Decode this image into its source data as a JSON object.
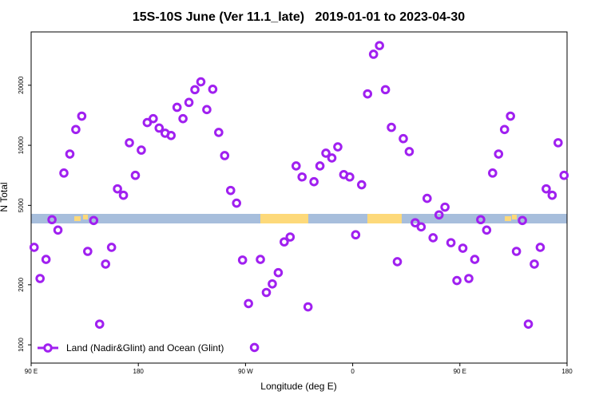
{
  "chart_data": {
    "type": "scatter",
    "title": "15S-10S June (Ver 11.1_late)   2019-01-01 to 2023-04-30",
    "x_label": "Longitude (deg E)",
    "y_label": "N Total",
    "log_y": true,
    "legend": "bottom-left",
    "xlim": [
      90,
      540
    ],
    "xticks": [
      {
        "value": 90,
        "label": "90 E"
      },
      180,
      {
        "value": 270,
        "label": "90 W"
      },
      {
        "value": 360,
        "label": "0"
      },
      {
        "value": 450,
        "label": "90 E"
      },
      {
        "value": 540,
        "label": "180"
      }
    ],
    "ylim": [
      810,
      37000
    ],
    "yticks": [
      1000,
      2000,
      5000,
      10000,
      20000
    ],
    "x": [
      92.5,
      97.5,
      102.5,
      107.5,
      112.5,
      117.5,
      122.5,
      127.5,
      132.5,
      137.5,
      142.5,
      147.5,
      152.5,
      157.5,
      162.5,
      167.5,
      172.5,
      177.5,
      182.5,
      187.5,
      192.5,
      197.5,
      202.5,
      207.5,
      212.5,
      217.5,
      222.5,
      227.5,
      232.5,
      237.5,
      242.5,
      247.5,
      252.5,
      257.5,
      262.5,
      267.5,
      272.5,
      277.5,
      282.5,
      287.5,
      292.5,
      297.5,
      302.5,
      307.5,
      312.5,
      317.5,
      322.5,
      327.5,
      332.5,
      337.5,
      342.5,
      347.5,
      352.5,
      357.5,
      362.5,
      367.5,
      372.5,
      377.5,
      382.5,
      387.5,
      392.5,
      397.5,
      402.5,
      407.5,
      412.5,
      417.5,
      422.5,
      427.5,
      432.5,
      437.5,
      442.5,
      447.5,
      452.5,
      457.5,
      462.5,
      467.5,
      472.5,
      477.5,
      482.5,
      487.5,
      492.5,
      497.5,
      502.5,
      507.5,
      512.5,
      517.5,
      522.5,
      527.5,
      532.5,
      537.5
    ],
    "series": [
      {
        "name": "Land (Nadir&Glint) and Ocean (Glint)",
        "color": "#a020f0",
        "values": [
          3080,
          2150,
          2680,
          4240,
          3760,
          7260,
          9040,
          12000,
          14000,
          2940,
          4200,
          1270,
          2540,
          3080,
          6050,
          5620,
          10300,
          7070,
          9460,
          13000,
          13600,
          12200,
          11500,
          11200,
          15500,
          13600,
          16400,
          19000,
          20800,
          15100,
          19100,
          11600,
          8880,
          5940,
          5130,
          2660,
          1610,
          970,
          2680,
          1830,
          2020,
          2300,
          3280,
          3470,
          7880,
          6940,
          1550,
          6570,
          7880,
          9130,
          8640,
          9820,
          7130,
          6940,
          3560,
          6340,
          18100,
          28600,
          31600,
          19000,
          12300,
          2610,
          10800,
          9300,
          4090,
          3900,
          5420,
          3440,
          4480,
          4900,
          3250,
          2100,
          3050,
          2150,
          2680,
          4240,
          3760,
          7260,
          9040,
          12000,
          14000,
          2940,
          4200,
          1270,
          2540,
          3080,
          6050,
          5620,
          10300,
          7070
        ]
      }
    ]
  }
}
